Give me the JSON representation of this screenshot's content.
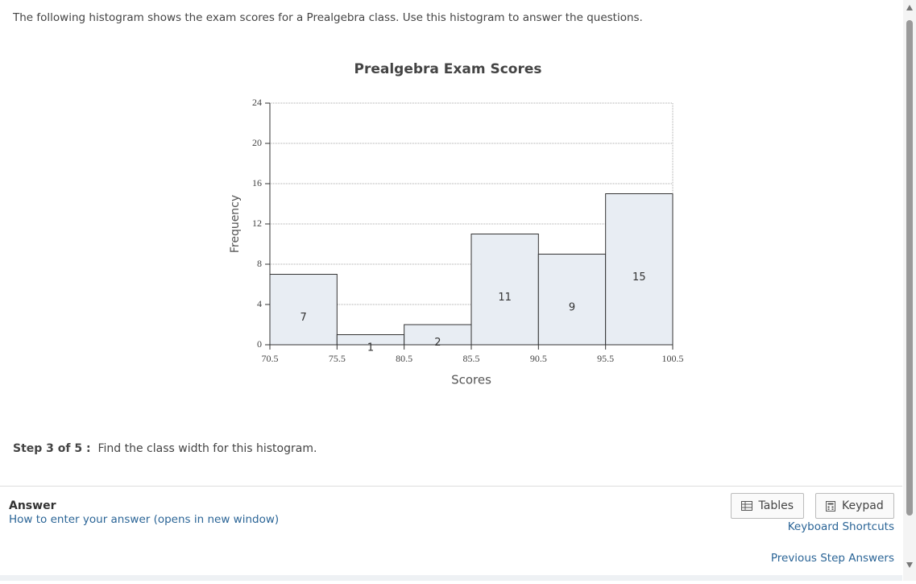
{
  "intro": "The following histogram shows the exam scores for a Prealgebra class. Use this histogram to answer the questions.",
  "chart_data": {
    "type": "histogram",
    "title": "Prealgebra Exam Scores",
    "x_label": "Scores",
    "y_label": "Frequency",
    "bins": [
      70.5,
      75.5,
      80.5,
      85.5,
      90.5,
      95.5,
      100.5
    ],
    "values": [
      7,
      1,
      2,
      11,
      9,
      15
    ],
    "color": "#e8edf3",
    "xlim": [
      70.5,
      100.5
    ],
    "ylim": [
      0,
      24
    ],
    "yticks": [
      0,
      4,
      8,
      12,
      16,
      20,
      24
    ],
    "grid": true
  },
  "step": {
    "label": "Step 3 of 5 :",
    "text": "Find the class width for this histogram."
  },
  "answer": {
    "heading": "Answer",
    "help_link": "How to enter your answer (opens in new window)",
    "buttons": [
      "Tables",
      "Keypad"
    ],
    "links": [
      "Keyboard Shortcuts",
      "Previous Step Answers"
    ]
  }
}
